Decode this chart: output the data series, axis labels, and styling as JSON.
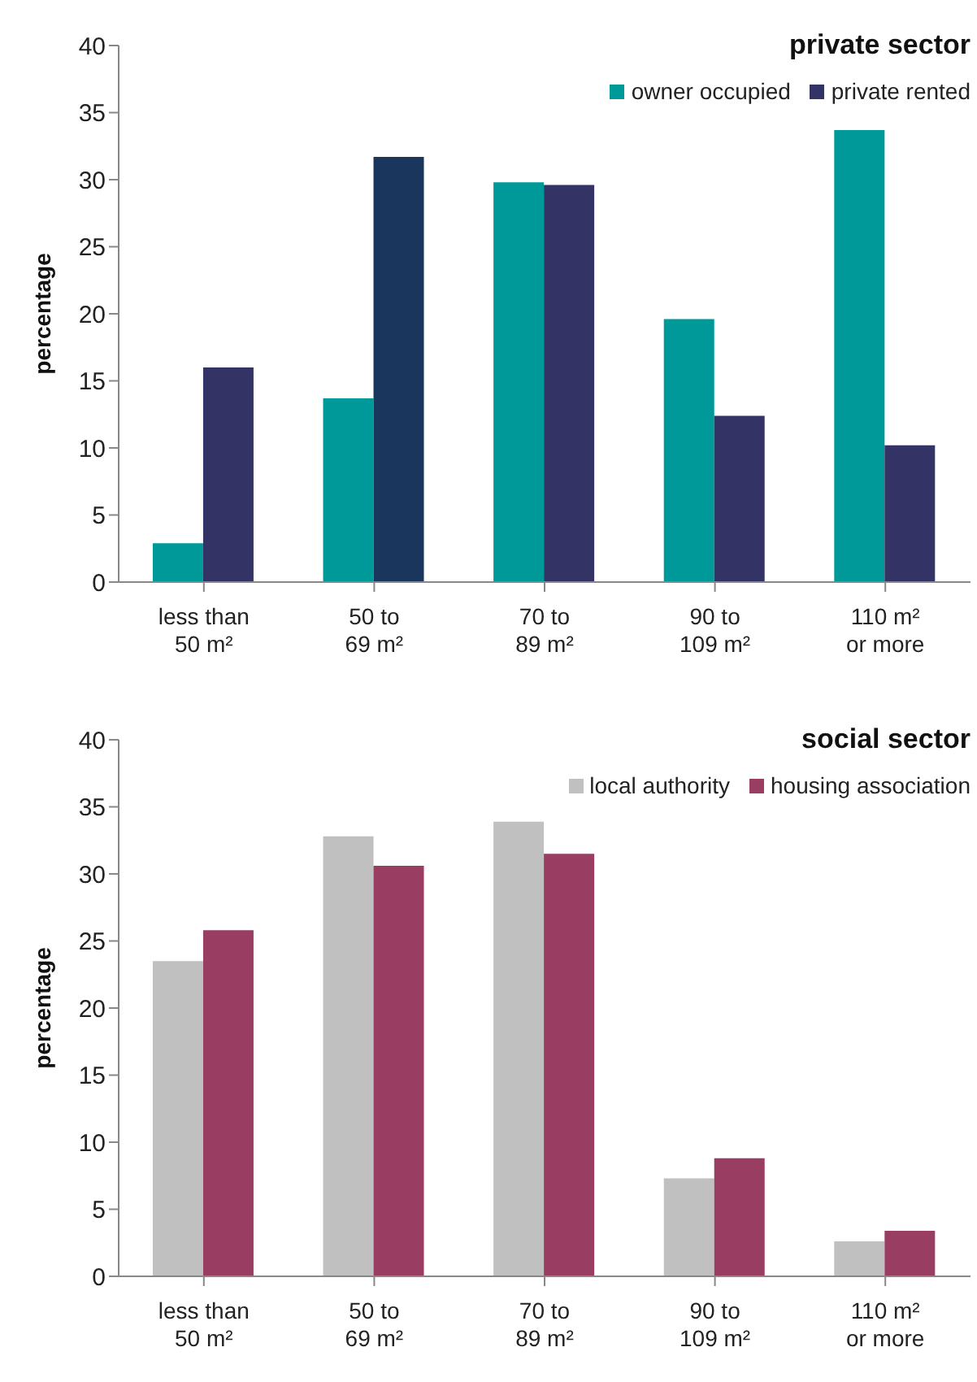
{
  "chart_data": [
    {
      "type": "bar",
      "title": "private sector",
      "ylabel": "percentage",
      "categories": [
        "less than\n50 m²",
        "50 to\n69 m²",
        "70 to\n89 m²",
        "90 to\n109 m²",
        "110 m²\nor more"
      ],
      "series": [
        {
          "name": "owner occupied",
          "color": "#009999",
          "values": [
            2.9,
            13.7,
            29.8,
            19.6,
            33.7
          ]
        },
        {
          "name": "private rented",
          "color": "#333366",
          "colors": [
            "#333366",
            "#1b365d",
            "#333366",
            "#333366",
            "#333366"
          ],
          "values": [
            16.0,
            31.7,
            29.6,
            12.4,
            10.2
          ]
        }
      ],
      "ylim": [
        0,
        40
      ],
      "yticks": [
        0,
        5,
        10,
        15,
        20,
        25,
        30,
        35,
        40
      ],
      "grid": false,
      "legend": "top right"
    },
    {
      "type": "bar",
      "title": "social sector",
      "ylabel": "percentage",
      "categories": [
        "less than\n50 m²",
        "50 to\n69 m²",
        "70 to\n89 m²",
        "90 to\n109 m²",
        "110 m²\nor more"
      ],
      "series": [
        {
          "name": "local authority",
          "color": "#c0c0c0",
          "values": [
            23.5,
            32.8,
            33.9,
            7.3,
            2.6
          ]
        },
        {
          "name": "housing association",
          "color": "#993d63",
          "values": [
            25.8,
            30.6,
            31.5,
            8.8,
            3.4
          ]
        }
      ],
      "ylim": [
        0,
        40
      ],
      "yticks": [
        0,
        5,
        10,
        15,
        20,
        25,
        30,
        35,
        40
      ],
      "grid": false,
      "legend": "top right"
    }
  ]
}
